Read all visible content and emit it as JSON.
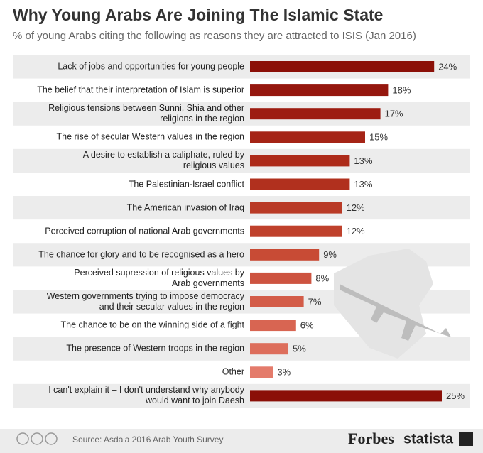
{
  "chart_data": {
    "type": "bar",
    "title": "Why Young Arabs Are Joining The Islamic State",
    "subtitle": "% of young Arabs citing the following as reasons they are attracted to ISIS (Jan 2016)",
    "categories": [
      "Lack of jobs and opportunities for young people",
      "The belief that their interpretation of Islam is superior",
      "Religious tensions between Sunni, Shia and other\nreligions in the region",
      "The rise of secular Western values in the region",
      "A desire to establish a caliphate, ruled by\nreligious values",
      "The Palestinian-Israel conflict",
      "The American invasion of Iraq",
      "Perceived corruption of national Arab governments",
      "The chance for glory and to be recognised as a hero",
      "Perceived supression of religious values by\nArab governments",
      "Western governments trying to impose democracy\nand their secular values in the region",
      "The chance to be on the winning side of a fight",
      "The presence of Western troops in the region",
      "Other",
      "I can't explain it – I don't understand why anybody\nwould want to join Daesh"
    ],
    "values": [
      24,
      18,
      17,
      15,
      13,
      13,
      12,
      12,
      9,
      8,
      7,
      6,
      5,
      3,
      25
    ],
    "value_labels": [
      "24%",
      "18%",
      "17%",
      "15%",
      "13%",
      "13%",
      "12%",
      "12%",
      "9%",
      "8%",
      "7%",
      "6%",
      "5%",
      "3%",
      "25%"
    ],
    "colors": [
      "#8b1008",
      "#95170e",
      "#9d1d12",
      "#a52416",
      "#ad2b1a",
      "#b1301e",
      "#b93a26",
      "#bf412c",
      "#c84b35",
      "#cd5340",
      "#d35c48",
      "#d86552",
      "#dd6e5c",
      "#e47b6b",
      "#8b1008"
    ],
    "source": "Source: Asda'a 2016 Arab Youth Survey",
    "brand1": "Forbes",
    "brand2": "statista"
  }
}
